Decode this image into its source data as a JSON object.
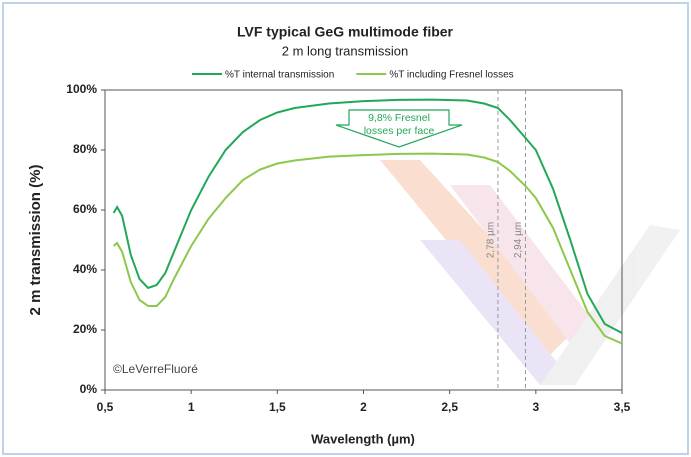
{
  "chart_data": {
    "type": "line",
    "title": "LVF typical GeG multimode fiber",
    "subtitle": "2 m long transmission",
    "x_label": "Wavelength (µm)",
    "y_label": "2 m transmission (%)",
    "x": [
      0.55,
      0.57,
      0.6,
      0.65,
      0.7,
      0.75,
      0.8,
      0.85,
      0.9,
      1.0,
      1.1,
      1.2,
      1.3,
      1.4,
      1.5,
      1.6,
      1.8,
      2.0,
      2.2,
      2.4,
      2.6,
      2.7,
      2.78,
      2.85,
      2.94,
      3.0,
      3.1,
      3.2,
      3.3,
      3.4,
      3.5
    ],
    "series": [
      {
        "name": "%T internal transmission",
        "color": "#22a85a",
        "values": [
          59,
          61,
          58,
          45,
          37,
          34,
          35,
          39,
          46,
          60,
          71,
          80,
          86,
          90,
          92.5,
          94,
          95.5,
          96.3,
          96.7,
          96.8,
          96.5,
          95.5,
          94,
          90,
          84,
          80,
          67,
          50,
          32,
          22,
          19
        ]
      },
      {
        "name": "%T including Fresnel losses",
        "color": "#8cc84b",
        "values": [
          48,
          49,
          46,
          36,
          30,
          28,
          28,
          31,
          37,
          48,
          57,
          64,
          70,
          73.5,
          75.5,
          76.5,
          77.8,
          78.3,
          78.7,
          78.8,
          78.5,
          77.5,
          76,
          73,
          68,
          64,
          54,
          40,
          26,
          18,
          15.5
        ]
      }
    ],
    "xlim": [
      0.5,
      3.5
    ],
    "xticks": [
      {
        "value": 0.5,
        "label": "0,5"
      },
      1,
      {
        "value": 1.5,
        "label": "1,5"
      },
      2,
      {
        "value": 2.5,
        "label": "2,5"
      },
      3,
      {
        "value": 3.5,
        "label": "3,5"
      }
    ],
    "ylim": [
      0,
      100
    ],
    "yticks": [
      {
        "value": 0,
        "label": "0%"
      },
      {
        "value": 20,
        "label": "20%"
      },
      {
        "value": 40,
        "label": "40%"
      },
      {
        "value": 60,
        "label": "60%"
      },
      {
        "value": 80,
        "label": "80%"
      },
      {
        "value": 100,
        "label": "100%"
      }
    ],
    "grid": false,
    "vlines": [
      {
        "x": 2.78,
        "label": "2,78 µm"
      },
      {
        "x": 2.94,
        "label": "2,94 µm"
      }
    ],
    "annotation": [
      "9,8% Fresnel",
      "losses per face"
    ],
    "copyright": "©LeVerreFluoré"
  }
}
